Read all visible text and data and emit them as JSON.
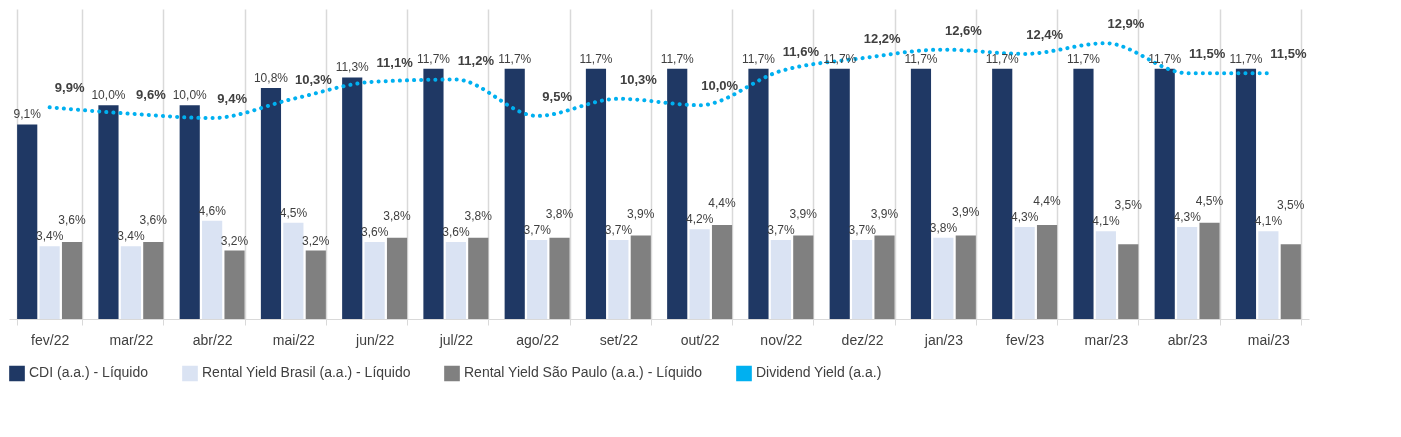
{
  "chart_data": {
    "type": "bar",
    "categories": [
      "fev/22",
      "mar/22",
      "abr/22",
      "mai/22",
      "jun/22",
      "jul/22",
      "ago/22",
      "set/22",
      "out/22",
      "nov/22",
      "dez/22",
      "jan/23",
      "fev/23",
      "mar/23",
      "abr/23",
      "mai/23"
    ],
    "ylim": [
      0,
      14.5
    ],
    "grid": "x",
    "legend": "bottom",
    "tick_labels": "x",
    "series": [
      {
        "name": "CDI (a.a.) - Líquido",
        "color": "#1f3864",
        "values": [
          9.1,
          10.0,
          10.0,
          10.8,
          11.3,
          11.7,
          11.7,
          11.7,
          11.7,
          11.7,
          11.7,
          11.7,
          11.7,
          11.7,
          11.7,
          11.7
        ],
        "value_labels": [
          "9,1%",
          "10,0%",
          "10,0%",
          "10,8%",
          "11,3%",
          "11,7%",
          "11,7%",
          "11,7%",
          "11,7%",
          "11,7%",
          "11,7%",
          "11,7%",
          "11,7%",
          "11,7%",
          "11,7%",
          "11,7%"
        ]
      },
      {
        "name": "Rental Yield Brasil (a.a.) - Líquido",
        "color": "#dae3f3",
        "values": [
          3.4,
          3.4,
          4.6,
          4.5,
          3.6,
          3.6,
          3.7,
          3.7,
          4.2,
          3.7,
          3.7,
          3.8,
          4.3,
          4.1,
          4.3,
          4.1
        ],
        "value_labels": [
          "3,4%",
          "3,4%",
          "4,6%",
          "4,5%",
          "3,6%",
          "3,6%",
          "3,7%",
          "3,7%",
          "4,2%",
          "3,7%",
          "3,7%",
          "3,8%",
          "4,3%",
          "4,1%",
          "4,3%",
          "4,1%"
        ]
      },
      {
        "name": "Rental Yield São Paulo (a.a.) - Líquido",
        "color": "#808080",
        "values": [
          3.6,
          3.6,
          3.2,
          3.2,
          3.8,
          3.8,
          3.8,
          3.9,
          4.4,
          3.9,
          3.9,
          3.9,
          4.4,
          3.5,
          4.5,
          3.5
        ],
        "value_labels": [
          "3,6%",
          "3,6%",
          "3,2%",
          "3,2%",
          "3,8%",
          "3,8%",
          "3,8%",
          "3,9%",
          "4,4%",
          "3,9%",
          "3,9%",
          "3,9%",
          "4,4%",
          "3,5%",
          "4,5%",
          "3,5%"
        ]
      },
      {
        "name": "Dividend Yield (a.a.)",
        "type": "line",
        "line_style": "dotted",
        "marker": "none",
        "color": "#00b0f0",
        "values": [
          9.9,
          9.6,
          9.4,
          10.3,
          11.1,
          11.2,
          9.5,
          10.3,
          10.0,
          11.6,
          12.2,
          12.6,
          12.4,
          12.9,
          11.5,
          11.5
        ],
        "value_labels": [
          "9,9%",
          "9,6%",
          "9,4%",
          "10,3%",
          "11,1%",
          "11,2%",
          "9,5%",
          "10,3%",
          "10,0%",
          "11,6%",
          "12,2%",
          "12,6%",
          "12,4%",
          "12,9%",
          "11,5%",
          "11,5%"
        ]
      }
    ]
  }
}
